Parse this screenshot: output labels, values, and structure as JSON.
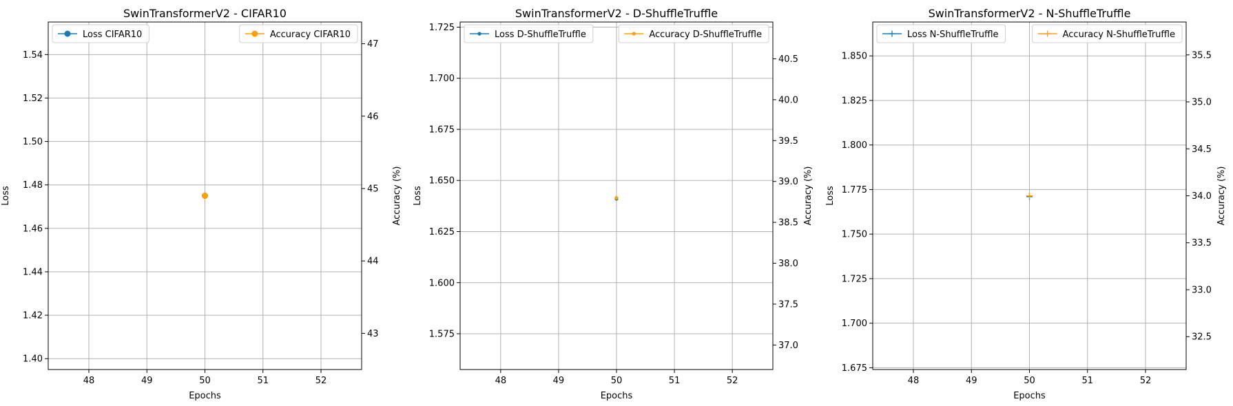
{
  "colors": {
    "loss": "#1f77b4",
    "accuracy": "#ff9f00",
    "grid": "#b0b0b0",
    "frame": "#000000"
  },
  "chart_data": [
    {
      "type": "line",
      "title": "SwinTransformerV2 - CIFAR10",
      "xlabel": "Epochs",
      "ylabel": "Loss",
      "y2label": "Accuracy (%)",
      "marker": "circle",
      "xlim": [
        47.3,
        52.7
      ],
      "ylim": [
        1.395,
        1.555
      ],
      "y2lim": [
        42.5,
        47.3
      ],
      "xticks": [
        48,
        49,
        50,
        51,
        52
      ],
      "yticks": [
        "1.40",
        "1.42",
        "1.44",
        "1.46",
        "1.48",
        "1.50",
        "1.52",
        "1.54"
      ],
      "y2ticks": [
        "43",
        "44",
        "45",
        "46",
        "47"
      ],
      "grid": true,
      "series": [
        {
          "name": "Loss CIFAR10",
          "axis": "left",
          "x": [
            50
          ],
          "y": [
            1.475
          ]
        },
        {
          "name": "Accuracy CIFAR10",
          "axis": "right",
          "x": [
            50
          ],
          "y": [
            44.9
          ]
        }
      ]
    },
    {
      "type": "line",
      "title": "SwinTransformerV2 - D-ShuffleTruffle",
      "xlabel": "Epochs",
      "ylabel": "Loss",
      "y2label": "Accuracy (%)",
      "marker": "point",
      "xlim": [
        47.3,
        52.7
      ],
      "ylim": [
        1.5575,
        1.7275
      ],
      "y2lim": [
        36.7,
        40.95
      ],
      "xticks": [
        48,
        49,
        50,
        51,
        52
      ],
      "yticks": [
        "1.575",
        "1.600",
        "1.625",
        "1.650",
        "1.675",
        "1.700",
        "1.725"
      ],
      "y2ticks": [
        "37.0",
        "37.5",
        "38.0",
        "38.5",
        "39.0",
        "39.5",
        "40.0",
        "40.5"
      ],
      "grid": true,
      "series": [
        {
          "name": "Loss D-ShuffleTruffle",
          "axis": "left",
          "x": [
            50
          ],
          "y": [
            1.641
          ]
        },
        {
          "name": "Accuracy D-ShuffleTruffle",
          "axis": "right",
          "x": [
            50
          ],
          "y": [
            38.8
          ]
        }
      ]
    },
    {
      "type": "line",
      "title": "SwinTransformerV2 - N-ShuffleTruffle",
      "xlabel": "Epochs",
      "ylabel": "Loss",
      "y2label": "Accuracy (%)",
      "marker": "plus",
      "xlim": [
        47.3,
        52.7
      ],
      "ylim": [
        1.674,
        1.869
      ],
      "y2lim": [
        32.15,
        35.85
      ],
      "xticks": [
        48,
        49,
        50,
        51,
        52
      ],
      "yticks": [
        "1.675",
        "1.700",
        "1.725",
        "1.750",
        "1.775",
        "1.800",
        "1.825",
        "1.850"
      ],
      "y2ticks": [
        "32.5",
        "33.0",
        "33.5",
        "34.0",
        "34.5",
        "35.0",
        "35.5"
      ],
      "grid": true,
      "series": [
        {
          "name": "Loss N-ShuffleTruffle",
          "axis": "left",
          "x": [
            50
          ],
          "y": [
            1.771
          ]
        },
        {
          "name": "Accuracy N-ShuffleTruffle",
          "axis": "right",
          "x": [
            50
          ],
          "y": [
            34.0
          ]
        }
      ]
    }
  ]
}
